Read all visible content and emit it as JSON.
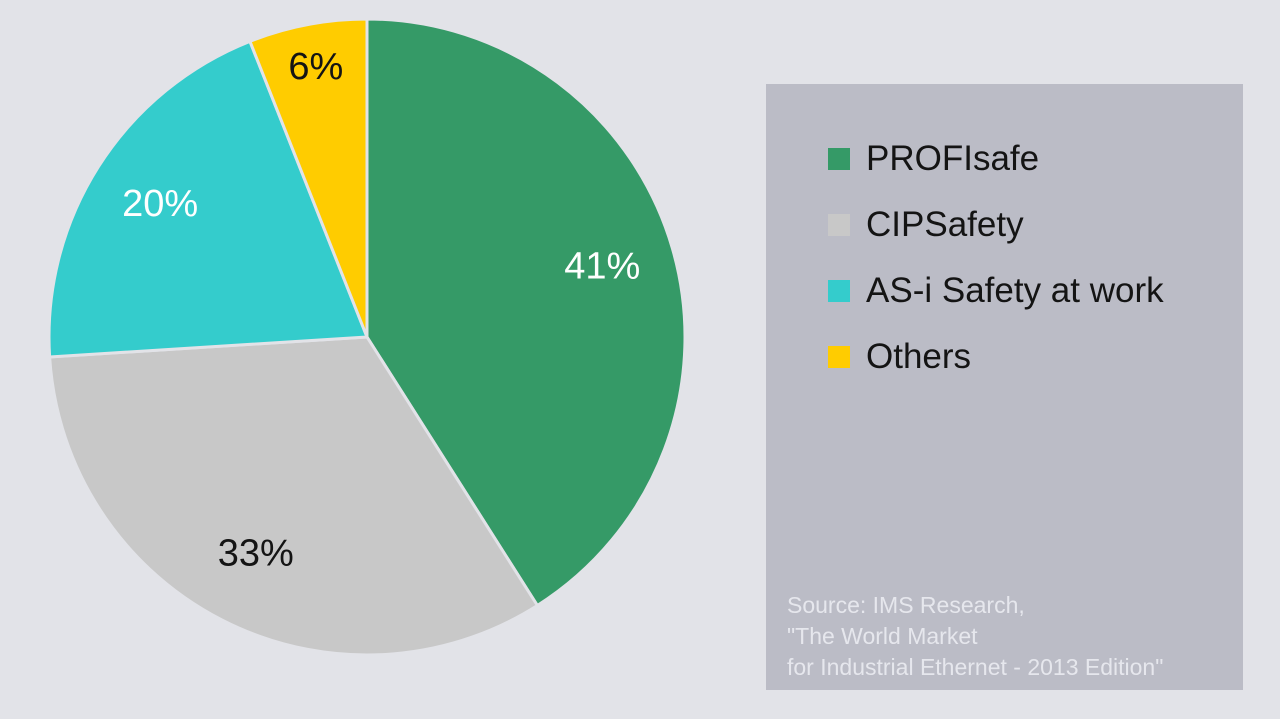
{
  "chart_data": {
    "type": "pie",
    "categories": [
      "PROFIsafe",
      "CIPSafety",
      "AS-i Safety at work",
      "Others"
    ],
    "values": [
      41,
      33,
      20,
      6
    ],
    "labels": [
      "41%",
      "33%",
      "20%",
      "6%"
    ],
    "colors": [
      "#359a67",
      "#c8c8c8",
      "#34cccc",
      "#ffcc00"
    ],
    "label_colors": [
      "#ffffff",
      "#141414",
      "#ffffff",
      "#141414"
    ],
    "start_angle_deg": 0,
    "direction": "clockwise",
    "legend": {
      "placement": "right",
      "items": [
        {
          "label": "PROFIsafe",
          "color": "#359a67"
        },
        {
          "label": "CIPSafety",
          "color": "#c8c8c8"
        },
        {
          "label": "AS-i Safety at work",
          "color": "#34cccc"
        },
        {
          "label": "Others",
          "color": "#ffcc00"
        }
      ]
    },
    "source": {
      "lines": [
        "Source: IMS Research,",
        "\"The World Market",
        "for Industrial Ethernet - 2013 Edition\""
      ]
    }
  }
}
